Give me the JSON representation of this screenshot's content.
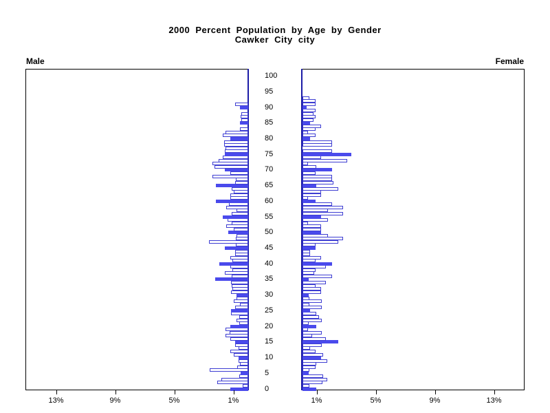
{
  "title_line1": "2000 Percent Population by Age by Gender",
  "title_line2": "Cawker City city",
  "left_panel_label": "Male",
  "right_panel_label": "Female",
  "colors": {
    "bar_fill_blue": "#4a4aec",
    "bar_outline_blue": "#3d3dd2",
    "baseline_blue": "#1a1aa6",
    "axis_black": "#000000",
    "background": "#ffffff"
  },
  "chart_data": {
    "type": "bar",
    "subtype": "population-pyramid",
    "title": "2000 Percent Population by Age by Gender",
    "subtitle": "Cawker City city",
    "xlabel": "Percent of population",
    "ylabel": "Age (years)",
    "xlim_each_side": [
      0,
      15
    ],
    "grid": false,
    "age_axis_ticks": [
      "0",
      "5",
      "10",
      "15",
      "20",
      "25",
      "30",
      "35",
      "40",
      "45",
      "50",
      "55",
      "60",
      "65",
      "70",
      "75",
      "80",
      "85",
      "90",
      "95",
      "100"
    ],
    "male_x_tick_labels": [
      "13%",
      "9%",
      "5%",
      "1%"
    ],
    "male_x_tick_percents": [
      13,
      9,
      5,
      1
    ],
    "female_x_tick_labels": [
      "1%",
      "5%",
      "9%",
      "13%"
    ],
    "female_x_tick_percents": [
      1,
      5,
      9,
      13
    ],
    "bar_unit": "percent, one bar per single year of age; ages at multiples of 5 are solid blue, others white with blue outline",
    "series": [
      {
        "name": "Male",
        "direction": "left",
        "values_by_age": [
          1.2,
          0.35,
          2.1,
          1.8,
          0.6,
          0.5,
          2.6,
          0.75,
          0.55,
          0.65,
          0.65,
          1.0,
          1.2,
          0.65,
          0.9,
          0.9,
          1.2,
          1.55,
          1.25,
          1.55,
          1.2,
          0.6,
          0.8,
          0.6,
          1.15,
          1.15,
          0.9,
          0.55,
          1.0,
          0.8,
          0.8,
          1.15,
          1.05,
          1.1,
          1.15,
          2.25,
          1.1,
          1.6,
          1.05,
          1.2,
          1.95,
          1.05,
          1.2,
          0.9,
          0.9,
          1.6,
          0.85,
          2.65,
          0.85,
          0.8,
          1.35,
          1.0,
          1.5,
          1.1,
          1.4,
          1.7,
          1.1,
          0.8,
          1.5,
          1.3,
          2.2,
          1.2,
          1.2,
          1.0,
          1.1,
          2.2,
          0.9,
          0.85,
          2.4,
          1.2,
          1.6,
          2.3,
          2.4,
          2.0,
          1.7,
          1.6,
          1.6,
          1.55,
          1.65,
          1.65,
          1.2,
          1.7,
          1.55,
          0.55,
          null,
          0.55,
          0.45,
          0.5,
          0.45,
          null,
          0.55,
          0.9,
          null,
          null
        ]
      },
      {
        "name": "Female",
        "direction": "right",
        "values_by_age": [
          0.93,
          0.45,
          1.33,
          1.67,
          1.4,
          0.43,
          0.48,
          0.9,
          0.93,
          1.67,
          1.25,
          1.4,
          0.9,
          0.5,
          1.3,
          2.4,
          1.6,
          0.66,
          1.3,
          0.36,
          0.93,
          0.43,
          1.3,
          1.1,
          0.93,
          0.5,
          1.3,
          0.45,
          1.3,
          0.45,
          0.43,
          1.25,
          1.25,
          0.9,
          1.6,
          0.43,
          2.0,
          0.8,
          0.9,
          1.6,
          2.0,
          0.9,
          1.25,
          0.5,
          0.5,
          0.9,
          0.9,
          2.4,
          2.75,
          1.7,
          1.25,
          1.25,
          1.25,
          0.35,
          1.7,
          1.25,
          2.75,
          1.7,
          2.75,
          2.0,
          0.9,
          0.35,
          1.25,
          1.25,
          2.4,
          0.95,
          2.1,
          2.0,
          2.0,
          0.9,
          2.0,
          0.95,
          0.35,
          3.0,
          1.25,
          3.3,
          2.0,
          null,
          2.0,
          2.0,
          0.5,
          0.9,
          0.35,
          0.9,
          1.25,
          0.5,
          0.75,
          0.9,
          0.75,
          0.9,
          0.3,
          0.9,
          0.9,
          0.45
        ]
      }
    ]
  }
}
